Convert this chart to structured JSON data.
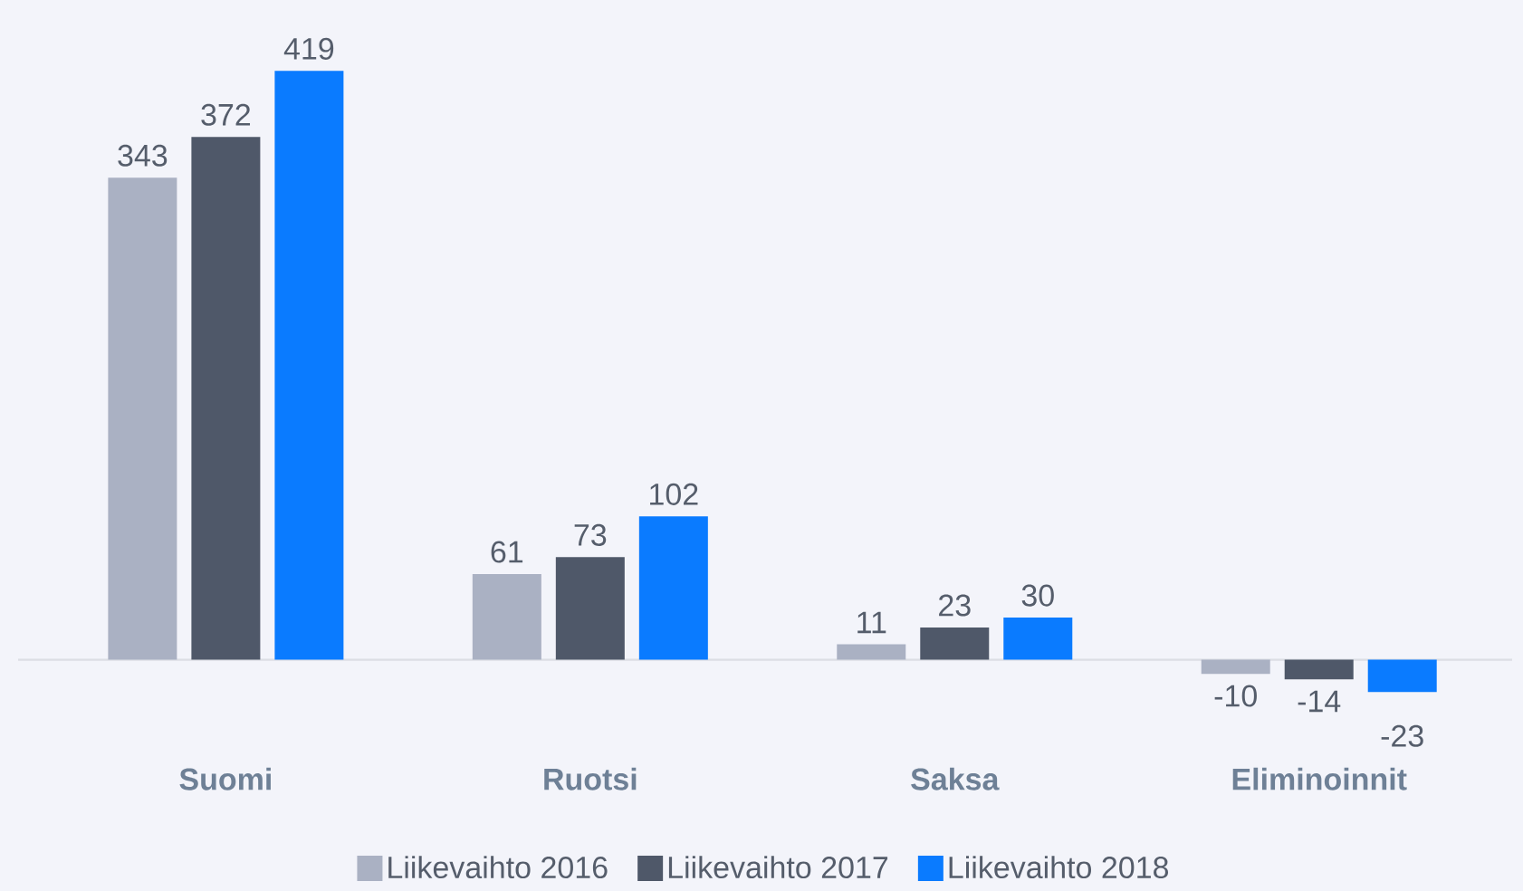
{
  "chart_data": {
    "type": "bar",
    "categories": [
      "Suomi",
      "Ruotsi",
      "Saksa",
      "Eliminoinnit"
    ],
    "series": [
      {
        "name": "Liikevaihto 2016",
        "color": "#aab1c3",
        "values": [
          343,
          61,
          11,
          -10
        ]
      },
      {
        "name": "Liikevaihto 2017",
        "color": "#4f5869",
        "values": [
          372,
          73,
          23,
          -14
        ]
      },
      {
        "name": "Liikevaihto 2018",
        "color": "#0a7bff",
        "values": [
          419,
          102,
          30,
          -23
        ]
      }
    ],
    "data_labels": true,
    "legend": "bottom"
  }
}
